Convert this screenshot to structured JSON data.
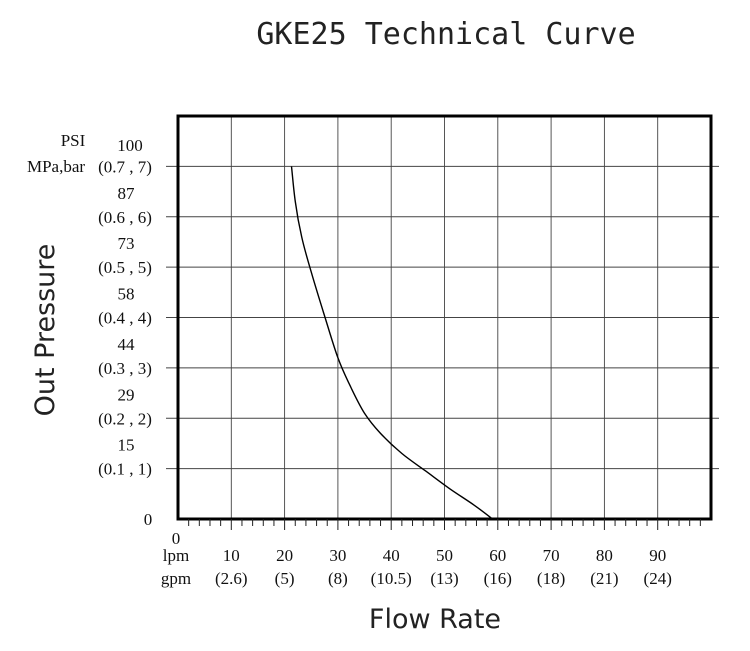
{
  "chart_data": {
    "type": "line",
    "title": "GKE25 Technical Curve",
    "xlabel": "Flow Rate",
    "ylabel": "Out Pressure",
    "x_unit_labels": [
      "lpm",
      "gpm"
    ],
    "x_origin_label": "0",
    "x_ticks": [
      {
        "lpm": "10",
        "gpm": "(2.6)",
        "value": 10
      },
      {
        "lpm": "20",
        "gpm": "(5)",
        "value": 20
      },
      {
        "lpm": "30",
        "gpm": "(8)",
        "value": 30
      },
      {
        "lpm": "40",
        "gpm": "(10.5)",
        "value": 40
      },
      {
        "lpm": "50",
        "gpm": "(13)",
        "value": 50
      },
      {
        "lpm": "60",
        "gpm": "(16)",
        "value": 60
      },
      {
        "lpm": "70",
        "gpm": "(18)",
        "value": 70
      },
      {
        "lpm": "80",
        "gpm": "(21)",
        "value": 80
      },
      {
        "lpm": "90",
        "gpm": "(24)",
        "value": 90
      }
    ],
    "y_unit_labels": [
      "PSI",
      "MPa,bar"
    ],
    "y_top_label": "100",
    "y_ticks": [
      {
        "psi": "0",
        "mpa_bar": "",
        "value": 0
      },
      {
        "psi": "15",
        "mpa_bar": "(0.1 , 1)",
        "value": 1
      },
      {
        "psi": "29",
        "mpa_bar": "(0.2 , 2)",
        "value": 2
      },
      {
        "psi": "44",
        "mpa_bar": "(0.3 , 3)",
        "value": 3
      },
      {
        "psi": "58",
        "mpa_bar": "(0.4 , 4)",
        "value": 4
      },
      {
        "psi": "73",
        "mpa_bar": "(0.5 , 5)",
        "value": 5
      },
      {
        "psi": "87",
        "mpa_bar": "(0.6 , 6)",
        "value": 6
      },
      {
        "psi": "",
        "mpa_bar": "(0.7 , 7)",
        "value": 7
      }
    ],
    "xlim": [
      0,
      100
    ],
    "ylim": [
      0,
      8
    ],
    "grid": true,
    "series": [
      {
        "x": [
          21.3,
          22.0,
          23.2,
          25.0,
          27.3,
          30.0,
          32.5,
          35.0,
          38.0,
          42.0,
          46.5,
          51.0,
          55.5,
          59.0
        ],
        "y": [
          7.0,
          6.3,
          5.6,
          4.9,
          4.1,
          3.2,
          2.6,
          2.1,
          1.7,
          1.3,
          0.95,
          0.6,
          0.28,
          0.0
        ]
      }
    ]
  }
}
